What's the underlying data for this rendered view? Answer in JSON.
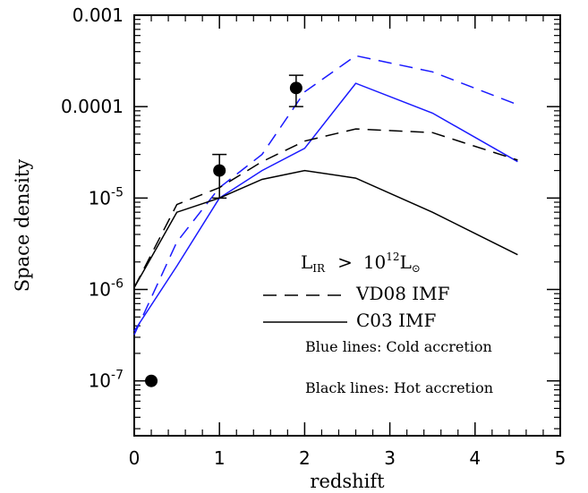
{
  "chart_data": {
    "type": "line",
    "xlabel": "redshift",
    "ylabel": "Space density",
    "xlim": [
      0,
      5
    ],
    "ylim_log10": [
      -7.6,
      -3
    ],
    "yscale": "log",
    "x_ticks": [
      "0",
      "1",
      "2",
      "3",
      "4",
      "5"
    ],
    "y_ticks": [
      {
        "value": 0.001,
        "label": "0.001",
        "form": "plain"
      },
      {
        "value": 0.0001,
        "label": "0.0001",
        "form": "plain"
      },
      {
        "value": 1e-05,
        "base": "10",
        "exp": "-5",
        "form": "power"
      },
      {
        "value": 1e-06,
        "base": "10",
        "exp": "-6",
        "form": "power"
      },
      {
        "value": 1e-07,
        "base": "10",
        "exp": "-7",
        "form": "power"
      }
    ],
    "series": [
      {
        "color": "#1a1aff",
        "dash": "dashed",
        "x": [
          0,
          0.5,
          1.0,
          1.5,
          2.0,
          2.6,
          3.5,
          4.5
        ],
        "y": [
          3.2e-07,
          3.3e-06,
          1.3e-05,
          3e-05,
          0.000145,
          0.00036,
          0.00024,
          0.000105
        ]
      },
      {
        "color": "#1a1aff",
        "dash": "solid",
        "x": [
          0,
          0.5,
          1.0,
          1.5,
          2.0,
          2.6,
          3.5,
          4.5
        ],
        "y": [
          3.5e-07,
          1.8e-06,
          1e-05,
          2e-05,
          3.5e-05,
          0.00018,
          8.5e-05,
          2.5e-05
        ]
      },
      {
        "color": "#000000",
        "dash": "dashed",
        "x": [
          0,
          0.5,
          1.0,
          1.5,
          2.0,
          2.6,
          3.5,
          4.5
        ],
        "y": [
          1.05e-06,
          8.5e-06,
          1.3e-05,
          2.5e-05,
          4.2e-05,
          5.7e-05,
          5.2e-05,
          2.6e-05
        ]
      },
      {
        "color": "#000000",
        "dash": "solid",
        "x": [
          0,
          0.5,
          1.0,
          1.5,
          2.0,
          2.6,
          3.5,
          4.5
        ],
        "y": [
          1.05e-06,
          7e-06,
          1e-05,
          1.6e-05,
          2e-05,
          1.65e-05,
          7e-06,
          2.4e-06
        ]
      }
    ],
    "observations": [
      {
        "x": 0.2,
        "y": 1e-07
      },
      {
        "x": 1.0,
        "y": 2e-05,
        "ylo": 1e-05,
        "yhi": 3e-05
      },
      {
        "x": 1.9,
        "y": 0.00016,
        "ylo": 0.0001,
        "yhi": 0.00022
      }
    ],
    "legend": {
      "placement": "lower-right",
      "header": {
        "main": "L",
        "sub": "IR",
        "op": ">",
        "base": "10",
        "exp": "12",
        "lmain": "L",
        "lsub": "⊙"
      },
      "entries": [
        {
          "label": "VD08 IMF",
          "dash": "dashed"
        },
        {
          "label": "C03 IMF",
          "dash": "solid"
        }
      ],
      "notes": [
        "Blue lines: Cold accretion",
        "Black lines: Hot accretion"
      ]
    }
  }
}
